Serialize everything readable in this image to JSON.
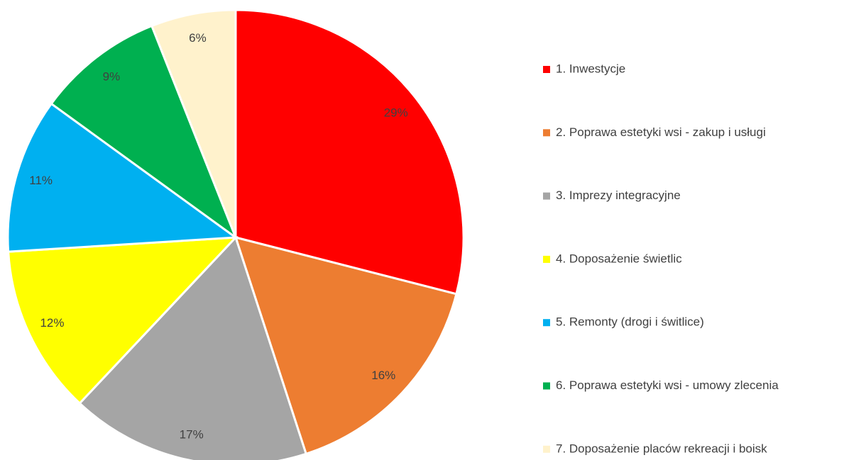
{
  "chart_data": {
    "type": "pie",
    "categories": [
      "1. Inwestycje",
      "2. Poprawa estetyki wsi - zakup i usługi",
      "3. Imprezy integracyjne",
      "4. Doposażenie świetlic",
      "5. Remonty (drogi i świtlice)",
      "6. Poprawa estetyki wsi - umowy zlecenia",
      "7. Doposażenie placów rekreacji i boisk"
    ],
    "values": [
      29,
      16,
      17,
      12,
      11,
      9,
      6
    ],
    "value_labels": [
      "29%",
      "16%",
      "17%",
      "12%",
      "11%",
      "9%",
      "6%"
    ],
    "colors": [
      "#ff0000",
      "#ed7d31",
      "#a5a5a5",
      "#ffff00",
      "#00b0f0",
      "#00b050",
      "#fff2cc"
    ],
    "legend": "right"
  }
}
